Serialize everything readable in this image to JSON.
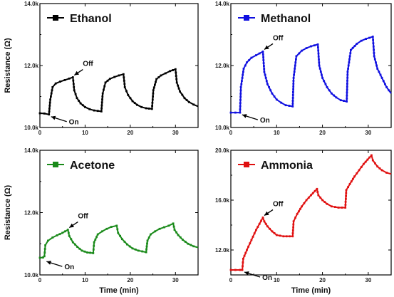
{
  "chart_data": [
    {
      "type": "line",
      "name": "Ethanol",
      "color": "#000000",
      "xlim": [
        0,
        35
      ],
      "ylim": [
        10000,
        14000
      ],
      "xticks": [
        0,
        10,
        20,
        30
      ],
      "xtick_labels": [
        "0",
        "10",
        "20",
        "30"
      ],
      "yticks": [
        10000,
        12000,
        14000
      ],
      "ytick_labels": [
        "10.0k",
        "12.0k",
        "14.0k"
      ],
      "xlabel": "",
      "ylabel": "Resistance (Ω)",
      "legend": "Ethanol",
      "legend_position": "top-left",
      "annotations": [
        {
          "text": "On",
          "x": 2,
          "y": 10420
        },
        {
          "text": "Off",
          "x": 7.3,
          "y": 11620
        }
      ],
      "points": [
        [
          0,
          10460
        ],
        [
          1,
          10450
        ],
        [
          2,
          10420
        ],
        [
          2.3,
          10900
        ],
        [
          2.8,
          11300
        ],
        [
          3.5,
          11420
        ],
        [
          4.5,
          11480
        ],
        [
          5.5,
          11530
        ],
        [
          6.5,
          11580
        ],
        [
          7.3,
          11620
        ],
        [
          7.6,
          11200
        ],
        [
          8.2,
          10950
        ],
        [
          9,
          10780
        ],
        [
          10,
          10660
        ],
        [
          11,
          10590
        ],
        [
          12,
          10550
        ],
        [
          13.6,
          10520
        ],
        [
          13.9,
          11100
        ],
        [
          14.5,
          11450
        ],
        [
          15.5,
          11570
        ],
        [
          16.5,
          11630
        ],
        [
          17.5,
          11680
        ],
        [
          18.5,
          11720
        ],
        [
          18.8,
          11300
        ],
        [
          19.5,
          11050
        ],
        [
          20.5,
          10850
        ],
        [
          21.5,
          10730
        ],
        [
          22.5,
          10660
        ],
        [
          23.5,
          10620
        ],
        [
          24.8,
          10600
        ],
        [
          25.1,
          11200
        ],
        [
          25.8,
          11560
        ],
        [
          26.8,
          11680
        ],
        [
          27.8,
          11750
        ],
        [
          28.8,
          11820
        ],
        [
          30,
          11880
        ],
        [
          30.3,
          11450
        ],
        [
          31,
          11160
        ],
        [
          32,
          10950
        ],
        [
          33,
          10820
        ],
        [
          34,
          10740
        ],
        [
          35,
          10680
        ]
      ]
    },
    {
      "type": "line",
      "name": "Methanol",
      "color": "#1010e0",
      "xlim": [
        0,
        35
      ],
      "ylim": [
        10000,
        14000
      ],
      "xticks": [
        0,
        10,
        20,
        30
      ],
      "xtick_labels": [
        "0",
        "10",
        "20",
        "30"
      ],
      "yticks": [
        10000,
        12000,
        14000
      ],
      "ytick_labels": [
        "10.0k",
        "12.0k",
        "14.0k"
      ],
      "xlabel": "",
      "ylabel": "",
      "legend": "Methanol",
      "legend_position": "top-left",
      "annotations": [
        {
          "text": "On",
          "x": 2,
          "y": 10480
        },
        {
          "text": "Off",
          "x": 7,
          "y": 12450
        }
      ],
      "points": [
        [
          0,
          10480
        ],
        [
          1,
          10480
        ],
        [
          2,
          10480
        ],
        [
          2.2,
          11300
        ],
        [
          2.8,
          11900
        ],
        [
          3.5,
          12100
        ],
        [
          4.5,
          12250
        ],
        [
          5.5,
          12330
        ],
        [
          7,
          12450
        ],
        [
          7.3,
          11800
        ],
        [
          8,
          11400
        ],
        [
          9,
          11100
        ],
        [
          10,
          10900
        ],
        [
          11,
          10800
        ],
        [
          12,
          10720
        ],
        [
          13.5,
          10680
        ],
        [
          13.7,
          11600
        ],
        [
          14.3,
          12300
        ],
        [
          15.5,
          12480
        ],
        [
          16.5,
          12560
        ],
        [
          17.5,
          12620
        ],
        [
          19,
          12680
        ],
        [
          19.3,
          12000
        ],
        [
          20,
          11600
        ],
        [
          21,
          11300
        ],
        [
          22,
          11100
        ],
        [
          23,
          10970
        ],
        [
          24,
          10880
        ],
        [
          25.3,
          10840
        ],
        [
          25.5,
          11800
        ],
        [
          26.2,
          12500
        ],
        [
          27.5,
          12700
        ],
        [
          28.5,
          12800
        ],
        [
          29.5,
          12860
        ],
        [
          31,
          12930
        ],
        [
          31.3,
          12300
        ],
        [
          32,
          11900
        ],
        [
          33,
          11600
        ],
        [
          34,
          11300
        ],
        [
          35,
          11100
        ]
      ]
    },
    {
      "type": "line",
      "name": "Acetone",
      "color": "#1a8a1a",
      "xlim": [
        0,
        35
      ],
      "ylim": [
        10000,
        14000
      ],
      "xticks": [
        0,
        10,
        20,
        30
      ],
      "xtick_labels": [
        "0",
        "10",
        "20",
        "30"
      ],
      "yticks": [
        10000,
        12000,
        14000
      ],
      "ytick_labels": [
        "10.0k",
        "12.0k",
        "14.0k"
      ],
      "xlabel": "Time (min)",
      "ylabel": "Resistance (Ω)",
      "legend": "Acetone",
      "legend_position": "top-left",
      "annotations": [
        {
          "text": "On",
          "x": 1,
          "y": 10500
        },
        {
          "text": "Off",
          "x": 6.2,
          "y": 11450
        }
      ],
      "points": [
        [
          0,
          10550
        ],
        [
          0.7,
          10560
        ],
        [
          1,
          10600
        ],
        [
          1.2,
          10950
        ],
        [
          1.8,
          11100
        ],
        [
          2.8,
          11200
        ],
        [
          3.8,
          11270
        ],
        [
          5,
          11350
        ],
        [
          6.2,
          11450
        ],
        [
          6.5,
          11250
        ],
        [
          7.3,
          11050
        ],
        [
          8.3,
          10900
        ],
        [
          9.3,
          10780
        ],
        [
          10.5,
          10720
        ],
        [
          11.8,
          10700
        ],
        [
          12,
          11050
        ],
        [
          12.8,
          11300
        ],
        [
          13.8,
          11400
        ],
        [
          14.8,
          11480
        ],
        [
          15.8,
          11540
        ],
        [
          17,
          11580
        ],
        [
          17.3,
          11350
        ],
        [
          18.2,
          11150
        ],
        [
          19.3,
          10980
        ],
        [
          20.5,
          10850
        ],
        [
          21.8,
          10780
        ],
        [
          23.5,
          10730
        ],
        [
          23.8,
          11100
        ],
        [
          24.5,
          11300
        ],
        [
          25.5,
          11400
        ],
        [
          26.5,
          11480
        ],
        [
          27.5,
          11530
        ],
        [
          28.5,
          11580
        ],
        [
          29.5,
          11650
        ],
        [
          29.8,
          11450
        ],
        [
          30.6,
          11280
        ],
        [
          31.6,
          11130
        ],
        [
          32.8,
          11000
        ],
        [
          34,
          10920
        ],
        [
          35,
          10880
        ]
      ]
    },
    {
      "type": "line",
      "name": "Ammonia",
      "color": "#e01010",
      "xlim": [
        0,
        35
      ],
      "ylim": [
        10000,
        20000
      ],
      "xticks": [
        0,
        10,
        20,
        30
      ],
      "xtick_labels": [
        "0",
        "10",
        "20",
        "30"
      ],
      "yticks": [
        12000,
        16000,
        20000
      ],
      "ytick_labels": [
        "12.0k",
        "16.0k",
        "20.0k"
      ],
      "xlabel": "Time (min)",
      "ylabel": "",
      "legend": "Ammonia",
      "legend_position": "top-left",
      "annotations": [
        {
          "text": "On",
          "x": 2.5,
          "y": 10400
        },
        {
          "text": "Off",
          "x": 7,
          "y": 14600
        }
      ],
      "points": [
        [
          0,
          10400
        ],
        [
          1,
          10400
        ],
        [
          2,
          10400
        ],
        [
          2.5,
          10400
        ],
        [
          2.7,
          11300
        ],
        [
          3.5,
          12000
        ],
        [
          4.5,
          12800
        ],
        [
          5.5,
          13600
        ],
        [
          7,
          14600
        ],
        [
          7.3,
          14300
        ],
        [
          8,
          13900
        ],
        [
          9,
          13500
        ],
        [
          10,
          13200
        ],
        [
          11.5,
          13100
        ],
        [
          13.5,
          13100
        ],
        [
          13.7,
          14300
        ],
        [
          14.5,
          14900
        ],
        [
          15.5,
          15500
        ],
        [
          16.5,
          16000
        ],
        [
          17.5,
          16400
        ],
        [
          18.8,
          16900
        ],
        [
          19.1,
          16400
        ],
        [
          20,
          16000
        ],
        [
          21,
          15700
        ],
        [
          22,
          15500
        ],
        [
          23.5,
          15400
        ],
        [
          25,
          15400
        ],
        [
          25.2,
          16800
        ],
        [
          26,
          17300
        ],
        [
          27,
          17900
        ],
        [
          28,
          18400
        ],
        [
          29,
          18900
        ],
        [
          30.7,
          19600
        ],
        [
          31,
          19200
        ],
        [
          32,
          18700
        ],
        [
          33,
          18400
        ],
        [
          34,
          18200
        ],
        [
          35,
          18100
        ]
      ]
    }
  ]
}
